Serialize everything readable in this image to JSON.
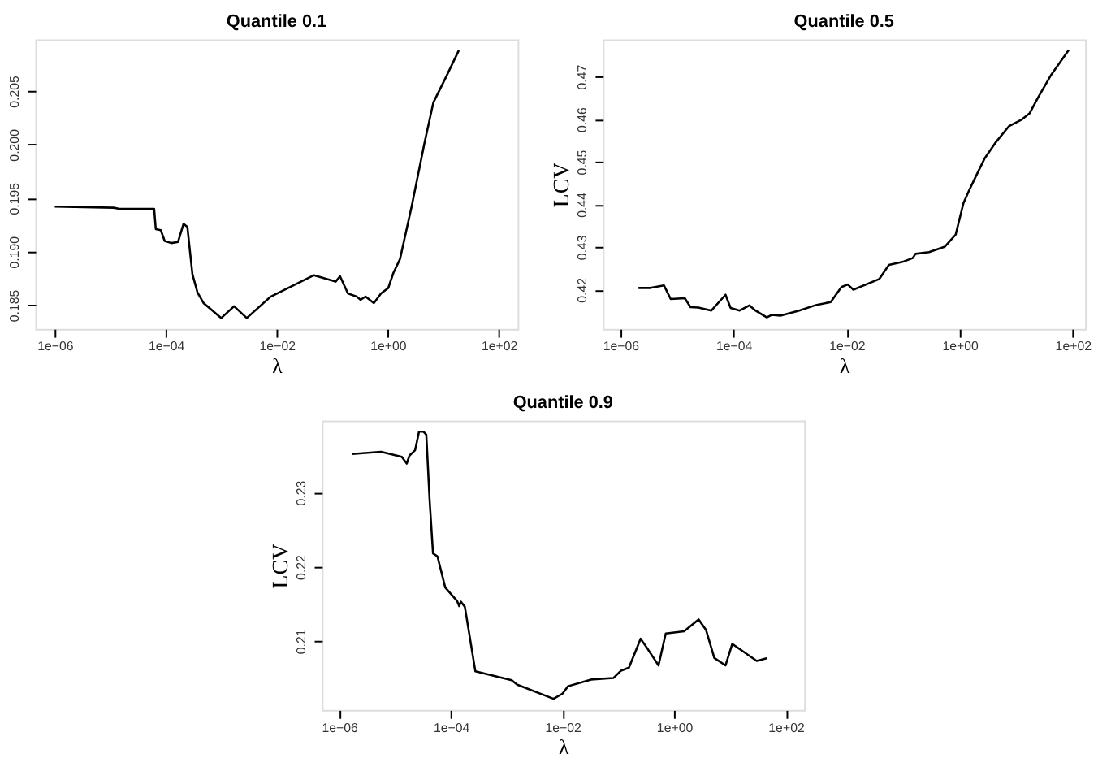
{
  "chart_data": [
    {
      "type": "line",
      "title": "Quantile 0.1",
      "xlabel": "λ",
      "log": "x",
      "grid": false,
      "marker": "none",
      "line_style": "solid",
      "xlim": [
        4.47e-07,
        219
      ],
      "ylim": [
        0.18279,
        0.20982
      ],
      "xticks": [
        {
          "value": 1e-06,
          "label": "1e−06"
        },
        {
          "value": 0.0001,
          "label": "1e−04"
        },
        {
          "value": 0.01,
          "label": "1e−02"
        },
        {
          "value": 1,
          "label": "1e+00"
        },
        {
          "value": 100,
          "label": "1e+02"
        }
      ],
      "yticks": [
        0.185,
        {
          "value": 0.19,
          "label": "0.190"
        },
        0.195,
        {
          "value": 0.2,
          "label": "0.200"
        },
        0.205
      ],
      "x": [
        1e-06,
        1.15e-05,
        1.45e-05,
        6.17e-05,
        6.61e-05,
        8.13e-05,
        9.55e-05,
        0.000126,
        0.000166,
        0.000209,
        0.000245,
        0.000302,
        0.000372,
        0.000479,
        0.001,
        0.0017,
        0.00288,
        0.00776,
        0.0468,
        0.115,
        0.138,
        0.191,
        0.275,
        0.324,
        0.398,
        0.562,
        0.759,
        1.02,
        1.26,
        1.66,
        2.69,
        4.57,
        6.61,
        11.7,
        19.1
      ],
      "series": [
        {
          "color": "#000000",
          "values": [
            0.1942,
            0.1941,
            0.194,
            0.194,
            0.1921,
            0.192,
            0.191,
            0.1908,
            0.1909,
            0.1926,
            0.1923,
            0.1879,
            0.1862,
            0.1852,
            0.1838,
            0.1849,
            0.1838,
            0.1858,
            0.1878,
            0.1872,
            0.1877,
            0.1861,
            0.1858,
            0.1855,
            0.1858,
            0.1852,
            0.1861,
            0.1866,
            0.188,
            0.1893,
            0.1942,
            0.2001,
            0.2039,
            0.2065,
            0.2088
          ]
        }
      ]
    },
    {
      "type": "line",
      "title": "Quantile 0.5",
      "xlabel": "λ",
      "ylabel": "LCV",
      "log": "x",
      "grid": false,
      "marker": "none",
      "line_style": "solid",
      "xlim": [
        4.9e-07,
        166
      ],
      "ylim": [
        0.4108,
        0.4787
      ],
      "xticks": [
        {
          "value": 1e-06,
          "label": "1e−06"
        },
        {
          "value": 0.0001,
          "label": "1e−04"
        },
        {
          "value": 0.01,
          "label": "1e−02"
        },
        {
          "value": 1,
          "label": "1e+00"
        },
        {
          "value": 100,
          "label": "1e+02"
        }
      ],
      "yticks": [
        0.42,
        0.43,
        0.44,
        0.45,
        0.46,
        0.47
      ],
      "x": [
        2.09e-06,
        3.39e-06,
        5.89e-06,
        7.76e-06,
        1.38e-05,
        1.74e-05,
        2.4e-05,
        4.07e-05,
        7.24e-05,
        8.91e-05,
        0.000129,
        0.000191,
        0.000245,
        0.000389,
        0.000479,
        0.000676,
        0.00145,
        0.00275,
        0.00525,
        0.00813,
        0.0105,
        0.0132,
        0.038,
        0.0562,
        0.0977,
        0.148,
        0.166,
        0.288,
        0.55,
        0.851,
        1.17,
        1.45,
        1.91,
        2.75,
        4.27,
        7.41,
        12.6,
        17.4,
        24.0,
        41.7,
        85.1
      ],
      "series": [
        {
          "color": "#000000",
          "values": [
            0.4204,
            0.4204,
            0.421,
            0.4178,
            0.418,
            0.4159,
            0.4158,
            0.4151,
            0.4188,
            0.4157,
            0.4151,
            0.4163,
            0.4151,
            0.4135,
            0.4141,
            0.4139,
            0.4151,
            0.4163,
            0.4171,
            0.4206,
            0.4212,
            0.42,
            0.4225,
            0.4258,
            0.4265,
            0.4274,
            0.4284,
            0.4288,
            0.4301,
            0.4329,
            0.4403,
            0.4431,
            0.4464,
            0.4507,
            0.4544,
            0.4583,
            0.4599,
            0.4614,
            0.4649,
            0.4704,
            0.4762
          ]
        }
      ]
    },
    {
      "type": "line",
      "title": "Quantile 0.9",
      "xlabel": "λ",
      "ylabel": "LCV",
      "log": "x",
      "grid": false,
      "marker": "none",
      "line_style": "solid",
      "xlim": [
        4.9e-07,
        214
      ],
      "ylim": [
        0.2007,
        0.2397
      ],
      "xticks": [
        {
          "value": 1e-06,
          "label": "1e−06"
        },
        {
          "value": 0.0001,
          "label": "1e−04"
        },
        {
          "value": 0.01,
          "label": "1e−02"
        },
        {
          "value": 1,
          "label": "1e+00"
        },
        {
          "value": 100,
          "label": "1e+02"
        }
      ],
      "yticks": [
        0.21,
        0.22,
        0.23
      ],
      "x": [
        1.7e-06,
        5.62e-06,
        1.32e-05,
        1.62e-05,
        1.82e-05,
        2.29e-05,
        2.69e-05,
        3.24e-05,
        3.63e-05,
        4.17e-05,
        4.79e-05,
        5.75e-05,
        7.94e-05,
        0.000129,
        0.000141,
        0.000151,
        0.000178,
        0.000275,
        0.00123,
        0.00155,
        0.00692,
        0.01,
        0.0126,
        0.0324,
        0.0813,
        0.112,
        0.155,
        0.251,
        0.324,
        0.525,
        0.708,
        1.51,
        2.75,
        3.72,
        5.25,
        8.32,
        11.0,
        30.2,
        46.8
      ],
      "series": [
        {
          "color": "#000000",
          "values": [
            0.2352,
            0.2355,
            0.2348,
            0.2339,
            0.235,
            0.2357,
            0.2382,
            0.2382,
            0.2378,
            0.2289,
            0.2218,
            0.2214,
            0.2172,
            0.2154,
            0.2147,
            0.2153,
            0.2146,
            0.2059,
            0.2047,
            0.2041,
            0.2022,
            0.2029,
            0.2039,
            0.2048,
            0.205,
            0.206,
            0.2064,
            0.2103,
            0.2091,
            0.2067,
            0.211,
            0.2113,
            0.2129,
            0.2115,
            0.2077,
            0.2067,
            0.2096,
            0.2073,
            0.2077
          ]
        }
      ]
    }
  ]
}
